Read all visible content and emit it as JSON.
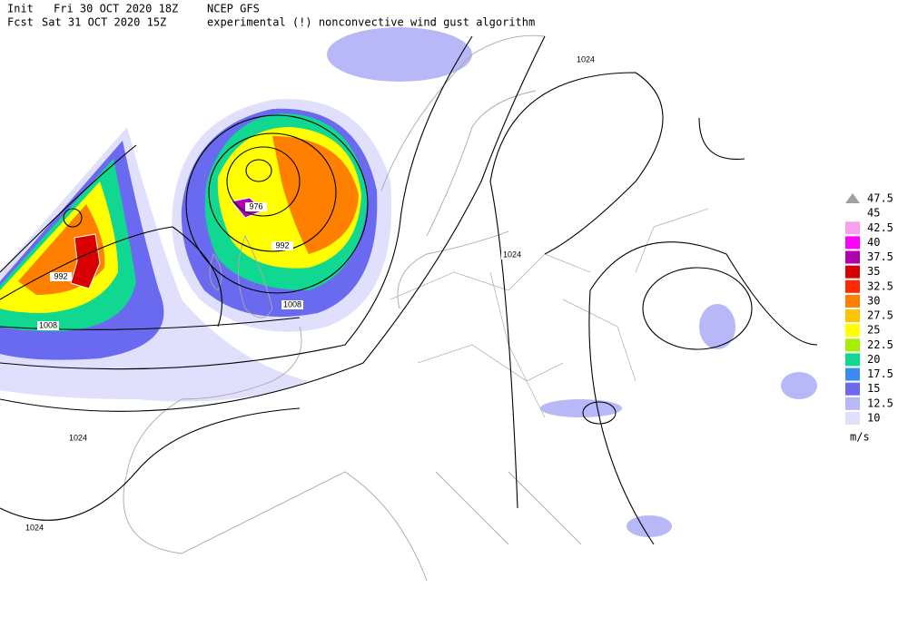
{
  "header": {
    "init_label": "Init",
    "init": "Fri 30 OCT 2020 18Z",
    "model": "NCEP GFS",
    "fcst_label": "Fcst",
    "fcst": "Sat 31 OCT 2020 15Z",
    "description": "experimental (!) nonconvective wind gust algorithm"
  },
  "legend": {
    "levels": [
      {
        "label": "47.5",
        "color": "#a0a0a0",
        "marker": "triangle"
      },
      {
        "label": "45"
      },
      {
        "label": "42.5",
        "color": "#f8a0f0"
      },
      {
        "label": "40",
        "color": "#ff00ff"
      },
      {
        "label": "37.5",
        "color": "#b000b0"
      },
      {
        "label": "35",
        "color": "#d80000"
      },
      {
        "label": "32.5",
        "color": "#ff2a00"
      },
      {
        "label": "30",
        "color": "#ff8000"
      },
      {
        "label": "27.5",
        "color": "#ffc400"
      },
      {
        "label": "25",
        "color": "#ffff00"
      },
      {
        "label": "22.5",
        "color": "#a8ee00"
      },
      {
        "label": "20",
        "color": "#10d890"
      },
      {
        "label": "17.5",
        "color": "#3c8cf0"
      },
      {
        "label": "15",
        "color": "#6a6af0"
      },
      {
        "label": "12.5",
        "color": "#b8b8f8"
      },
      {
        "label": "10",
        "color": "#e0e0fc"
      }
    ],
    "units": "m/s"
  },
  "isobar_labels": [
    "1024",
    "1024",
    "1024",
    "1024",
    "976",
    "992",
    "992",
    "1008",
    "1008"
  ]
}
